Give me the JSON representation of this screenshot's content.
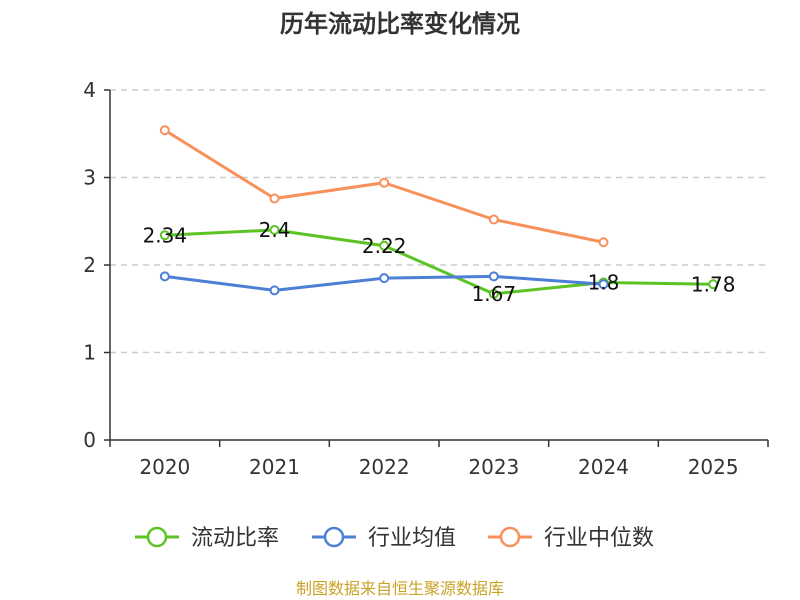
{
  "chart_data": {
    "type": "line",
    "title": "历年流动比率变化情况",
    "categories": [
      "2020",
      "2021",
      "2022",
      "2023",
      "2024",
      "2025"
    ],
    "ylim": [
      0,
      4
    ],
    "yticks": [
      "0",
      "1",
      "2",
      "3",
      "4"
    ],
    "grid": true,
    "legend_position": "bottom",
    "series": [
      {
        "name": "流动比率",
        "color": "#5bc424",
        "values": [
          2.34,
          2.4,
          2.22,
          1.67,
          1.8,
          1.78
        ],
        "labels": [
          "2.34",
          "2.4",
          "2.22",
          "1.67",
          "1.8",
          "1.78"
        ]
      },
      {
        "name": "行业均值",
        "color": "#4d7fd6",
        "values": [
          1.87,
          1.71,
          1.85,
          1.87,
          1.78,
          null
        ]
      },
      {
        "name": "行业中位数",
        "color": "#f7905a",
        "values": [
          3.54,
          2.76,
          2.94,
          2.52,
          2.26,
          null
        ]
      }
    ]
  },
  "source_text": "制图数据来自恒生聚源数据库",
  "source_color": "#c9a227"
}
